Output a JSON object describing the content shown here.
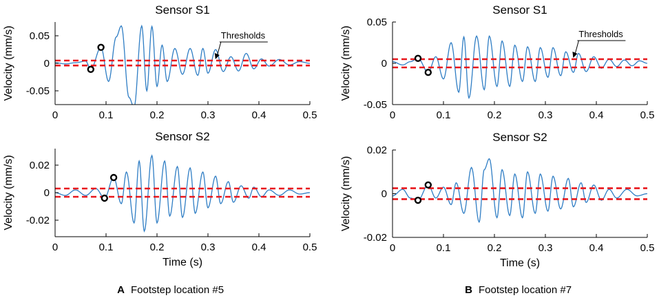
{
  "chart_data": [
    {
      "panel": "A",
      "title": "Sensor S1",
      "type": "line",
      "xlabel": "",
      "ylabel": "Velocity (mm/s)",
      "xlim": [
        0,
        0.5
      ],
      "ylim": [
        -0.075,
        0.075
      ],
      "xticks": [
        0,
        0.1,
        0.2,
        0.3,
        0.4,
        0.5
      ],
      "xticklabels": [
        "0",
        "0.1",
        "0.2",
        "0.3",
        "0.4",
        "0.5"
      ],
      "yticks": [
        -0.05,
        0,
        0.05
      ],
      "yticklabels": [
        "-0.05",
        "0",
        "0.05"
      ],
      "thresholds": [
        0.005,
        -0.004
      ],
      "annotation": "Thresholds",
      "annotation_x": 0.32,
      "markers": [
        {
          "x": 0.07,
          "y": -0.011
        },
        {
          "x": 0.09,
          "y": 0.029
        }
      ],
      "series": [
        {
          "name": "velocity",
          "peaks": [
            [
              0.0,
              0.001
            ],
            [
              0.02,
              -0.001
            ],
            [
              0.04,
              0.001
            ],
            [
              0.06,
              0.004
            ],
            [
              0.07,
              -0.011
            ],
            [
              0.09,
              0.029
            ],
            [
              0.105,
              -0.033
            ],
            [
              0.12,
              0.048
            ],
            [
              0.13,
              0.068
            ],
            [
              0.145,
              -0.062
            ],
            [
              0.155,
              -0.08
            ],
            [
              0.17,
              0.068
            ],
            [
              0.18,
              -0.05
            ],
            [
              0.19,
              0.067
            ],
            [
              0.2,
              -0.042
            ],
            [
              0.21,
              0.033
            ],
            [
              0.22,
              -0.033
            ],
            [
              0.235,
              0.027
            ],
            [
              0.25,
              -0.02
            ],
            [
              0.265,
              0.027
            ],
            [
              0.28,
              -0.022
            ],
            [
              0.29,
              0.027
            ],
            [
              0.3,
              -0.018
            ],
            [
              0.315,
              0.025
            ],
            [
              0.33,
              -0.015
            ],
            [
              0.345,
              0.012
            ],
            [
              0.36,
              -0.014
            ],
            [
              0.375,
              0.018
            ],
            [
              0.39,
              -0.01
            ],
            [
              0.405,
              0.008
            ],
            [
              0.42,
              -0.005
            ],
            [
              0.44,
              0.007
            ],
            [
              0.46,
              -0.003
            ],
            [
              0.48,
              0.003
            ],
            [
              0.5,
              0.0
            ]
          ]
        }
      ]
    },
    {
      "panel": "A",
      "title": "Sensor S2",
      "type": "line",
      "xlabel": "Time (s)",
      "ylabel": "Velocity (mm/s)",
      "xlim": [
        0,
        0.5
      ],
      "ylim": [
        -0.032,
        0.032
      ],
      "xticks": [
        0,
        0.1,
        0.2,
        0.3,
        0.4,
        0.5
      ],
      "xticklabels": [
        "0",
        "0.1",
        "0.2",
        "0.3",
        "0.4",
        "0.5"
      ],
      "yticks": [
        -0.02,
        0,
        0.02
      ],
      "yticklabels": [
        "-0.02",
        "0",
        "0.02"
      ],
      "thresholds": [
        0.003,
        -0.003
      ],
      "markers": [
        {
          "x": 0.097,
          "y": -0.004
        },
        {
          "x": 0.115,
          "y": 0.011
        }
      ],
      "series": [
        {
          "name": "velocity",
          "peaks": [
            [
              0.0,
              0.0
            ],
            [
              0.02,
              -0.002
            ],
            [
              0.04,
              0.002
            ],
            [
              0.06,
              -0.002
            ],
            [
              0.08,
              0.003
            ],
            [
              0.097,
              -0.004
            ],
            [
              0.115,
              0.011
            ],
            [
              0.13,
              -0.008
            ],
            [
              0.14,
              0.015
            ],
            [
              0.155,
              -0.022
            ],
            [
              0.165,
              0.023
            ],
            [
              0.175,
              -0.028
            ],
            [
              0.19,
              0.027
            ],
            [
              0.2,
              -0.022
            ],
            [
              0.215,
              0.023
            ],
            [
              0.225,
              -0.017
            ],
            [
              0.24,
              0.019
            ],
            [
              0.25,
              -0.018
            ],
            [
              0.265,
              0.018
            ],
            [
              0.275,
              -0.015
            ],
            [
              0.29,
              0.015
            ],
            [
              0.3,
              -0.011
            ],
            [
              0.315,
              0.012
            ],
            [
              0.325,
              -0.008
            ],
            [
              0.34,
              0.008
            ],
            [
              0.35,
              -0.007
            ],
            [
              0.365,
              0.005
            ],
            [
              0.38,
              -0.004
            ],
            [
              0.39,
              0.004
            ],
            [
              0.405,
              -0.003
            ],
            [
              0.42,
              0.002
            ],
            [
              0.44,
              -0.002
            ],
            [
              0.46,
              0.002
            ],
            [
              0.48,
              -0.001
            ],
            [
              0.5,
              0.0
            ]
          ]
        }
      ]
    },
    {
      "panel": "B",
      "title": "Sensor S1",
      "type": "line",
      "xlabel": "",
      "ylabel": "Velocity (mm/s)",
      "xlim": [
        0,
        0.5
      ],
      "ylim": [
        -0.05,
        0.05
      ],
      "xticks": [
        0,
        0.1,
        0.2,
        0.3,
        0.4,
        0.5
      ],
      "xticklabels": [
        "0",
        "0.1",
        "0.2",
        "0.3",
        "0.4",
        "0.5"
      ],
      "yticks": [
        -0.05,
        0,
        0.05
      ],
      "yticklabels": [
        "-0.05",
        "0",
        "0.05"
      ],
      "thresholds": [
        0.005,
        -0.005
      ],
      "annotation": "Thresholds",
      "annotation_x": 0.36,
      "markers": [
        {
          "x": 0.05,
          "y": 0.006
        },
        {
          "x": 0.07,
          "y": -0.011
        }
      ],
      "series": [
        {
          "name": "velocity",
          "peaks": [
            [
              0.0,
              0.002
            ],
            [
              0.02,
              -0.002
            ],
            [
              0.035,
              0.002
            ],
            [
              0.05,
              0.006
            ],
            [
              0.07,
              -0.011
            ],
            [
              0.085,
              0.008
            ],
            [
              0.1,
              -0.019
            ],
            [
              0.115,
              0.025
            ],
            [
              0.13,
              -0.035
            ],
            [
              0.14,
              0.032
            ],
            [
              0.15,
              -0.042
            ],
            [
              0.165,
              0.033
            ],
            [
              0.18,
              -0.032
            ],
            [
              0.19,
              0.033
            ],
            [
              0.205,
              -0.028
            ],
            [
              0.215,
              0.027
            ],
            [
              0.23,
              -0.028
            ],
            [
              0.24,
              0.022
            ],
            [
              0.255,
              -0.022
            ],
            [
              0.265,
              0.02
            ],
            [
              0.28,
              -0.022
            ],
            [
              0.29,
              0.019
            ],
            [
              0.305,
              -0.017
            ],
            [
              0.315,
              0.019
            ],
            [
              0.33,
              -0.015
            ],
            [
              0.34,
              0.014
            ],
            [
              0.355,
              -0.011
            ],
            [
              0.365,
              0.012
            ],
            [
              0.38,
              -0.01
            ],
            [
              0.395,
              0.008
            ],
            [
              0.41,
              -0.006
            ],
            [
              0.425,
              0.005
            ],
            [
              0.44,
              -0.004
            ],
            [
              0.455,
              0.004
            ],
            [
              0.47,
              -0.003
            ],
            [
              0.485,
              0.003
            ],
            [
              0.5,
              0.0
            ]
          ]
        }
      ]
    },
    {
      "panel": "B",
      "title": "Sensor S2",
      "type": "line",
      "xlabel": "Time (s)",
      "ylabel": "Velocity (mm/s)",
      "xlim": [
        0,
        0.5
      ],
      "ylim": [
        -0.02,
        0.02
      ],
      "xticks": [
        0,
        0.1,
        0.2,
        0.3,
        0.4,
        0.5
      ],
      "xticklabels": [
        "0",
        "0.1",
        "0.2",
        "0.3",
        "0.4",
        "0.5"
      ],
      "yticks": [
        -0.02,
        0,
        0.02
      ],
      "yticklabels": [
        "-0.02",
        "0",
        "0.02"
      ],
      "thresholds": [
        0.0025,
        -0.0025
      ],
      "markers": [
        {
          "x": 0.05,
          "y": -0.003
        },
        {
          "x": 0.07,
          "y": 0.004
        }
      ],
      "series": [
        {
          "name": "velocity",
          "peaks": [
            [
              0.0,
              -0.001
            ],
            [
              0.02,
              0.002
            ],
            [
              0.035,
              -0.002
            ],
            [
              0.05,
              -0.003
            ],
            [
              0.07,
              0.004
            ],
            [
              0.085,
              -0.002
            ],
            [
              0.1,
              0.003
            ],
            [
              0.115,
              -0.005
            ],
            [
              0.125,
              0.005
            ],
            [
              0.14,
              -0.009
            ],
            [
              0.155,
              0.012
            ],
            [
              0.17,
              -0.013
            ],
            [
              0.18,
              0.011
            ],
            [
              0.19,
              0.016
            ],
            [
              0.205,
              -0.011
            ],
            [
              0.215,
              0.011
            ],
            [
              0.23,
              -0.01
            ],
            [
              0.24,
              0.009
            ],
            [
              0.255,
              -0.011
            ],
            [
              0.265,
              0.01
            ],
            [
              0.28,
              -0.009
            ],
            [
              0.29,
              0.009
            ],
            [
              0.305,
              -0.008
            ],
            [
              0.315,
              0.008
            ],
            [
              0.33,
              -0.007
            ],
            [
              0.345,
              0.007
            ],
            [
              0.355,
              -0.006
            ],
            [
              0.37,
              0.005
            ],
            [
              0.38,
              -0.004
            ],
            [
              0.395,
              0.004
            ],
            [
              0.41,
              -0.003
            ],
            [
              0.425,
              0.002
            ],
            [
              0.44,
              -0.002
            ],
            [
              0.46,
              0.002
            ],
            [
              0.48,
              -0.001
            ],
            [
              0.5,
              0.0
            ]
          ]
        }
      ]
    }
  ],
  "captions": [
    {
      "letter": "A",
      "text": "Footstep location #5"
    },
    {
      "letter": "B",
      "text": "Footstep location #7"
    }
  ],
  "colors": {
    "signal": "#2e7dc4",
    "threshold": "#e8161b",
    "axis": "#000000"
  }
}
